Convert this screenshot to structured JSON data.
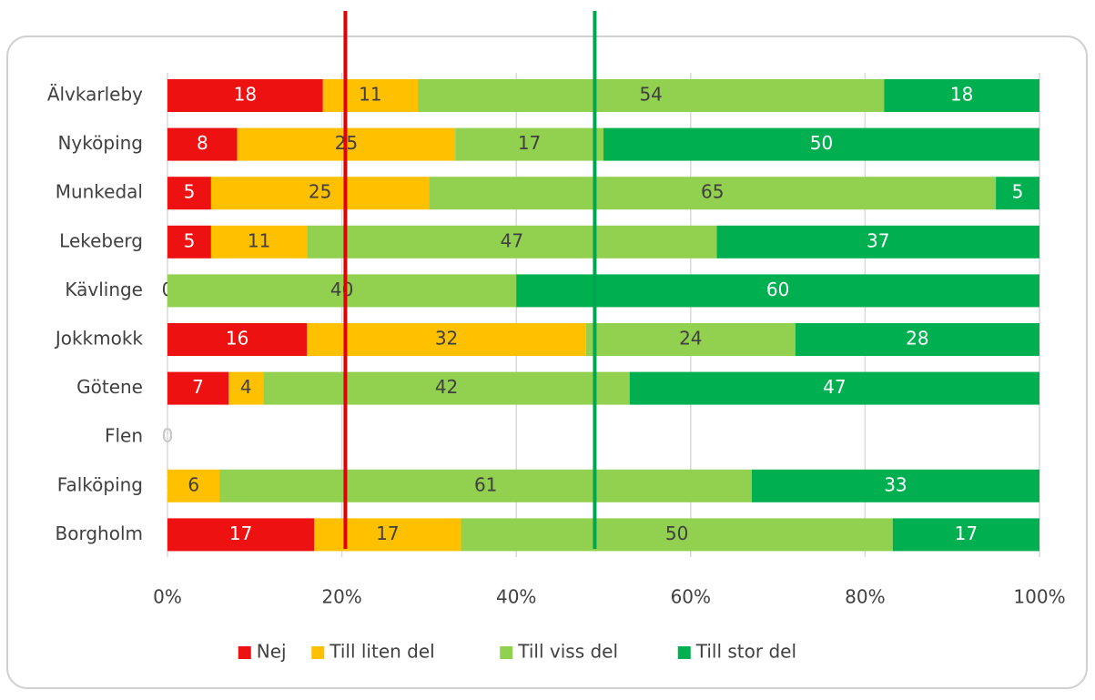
{
  "chart_data": {
    "type": "bar_stacked_percent_horizontal",
    "categories": [
      "Älvkarleby",
      "Nyköping",
      "Munkedal",
      "Lekeberg",
      "Kävlinge",
      "Jokkmokk",
      "Götene",
      "Flen",
      "Falköping",
      "Borgholm"
    ],
    "series": [
      {
        "name": "Nej",
        "color": "#ee1111",
        "label_color": "#ffffff",
        "values": [
          18,
          8,
          5,
          5,
          0,
          16,
          7,
          0,
          0,
          17
        ]
      },
      {
        "name": "Till liten del",
        "color": "#ffc000",
        "label_color": "#404040",
        "values": [
          11,
          25,
          25,
          11,
          0,
          32,
          4,
          0,
          6,
          17
        ]
      },
      {
        "name": "Till viss del",
        "color": "#92d050",
        "label_color": "#404040",
        "values": [
          54,
          17,
          65,
          47,
          40,
          24,
          42,
          0,
          61,
          50
        ]
      },
      {
        "name": "Till stor del",
        "color": "#00b050",
        "label_color": "#ffffff",
        "values": [
          18,
          50,
          5,
          37,
          60,
          28,
          47,
          0,
          33,
          17
        ]
      }
    ],
    "xlim": [
      0,
      100
    ],
    "xticks": [
      {
        "value": 0,
        "label": "0%"
      },
      {
        "value": 20,
        "label": "20%"
      },
      {
        "value": 40,
        "label": "40%"
      },
      {
        "value": 60,
        "label": "60%"
      },
      {
        "value": 80,
        "label": "80%"
      },
      {
        "value": 100,
        "label": "100%"
      }
    ],
    "grid": true,
    "legend": "bottom",
    "reference_lines": [
      {
        "value": 20.4,
        "color": "#e00000"
      },
      {
        "value": 49,
        "color": "#00a650"
      }
    ]
  }
}
